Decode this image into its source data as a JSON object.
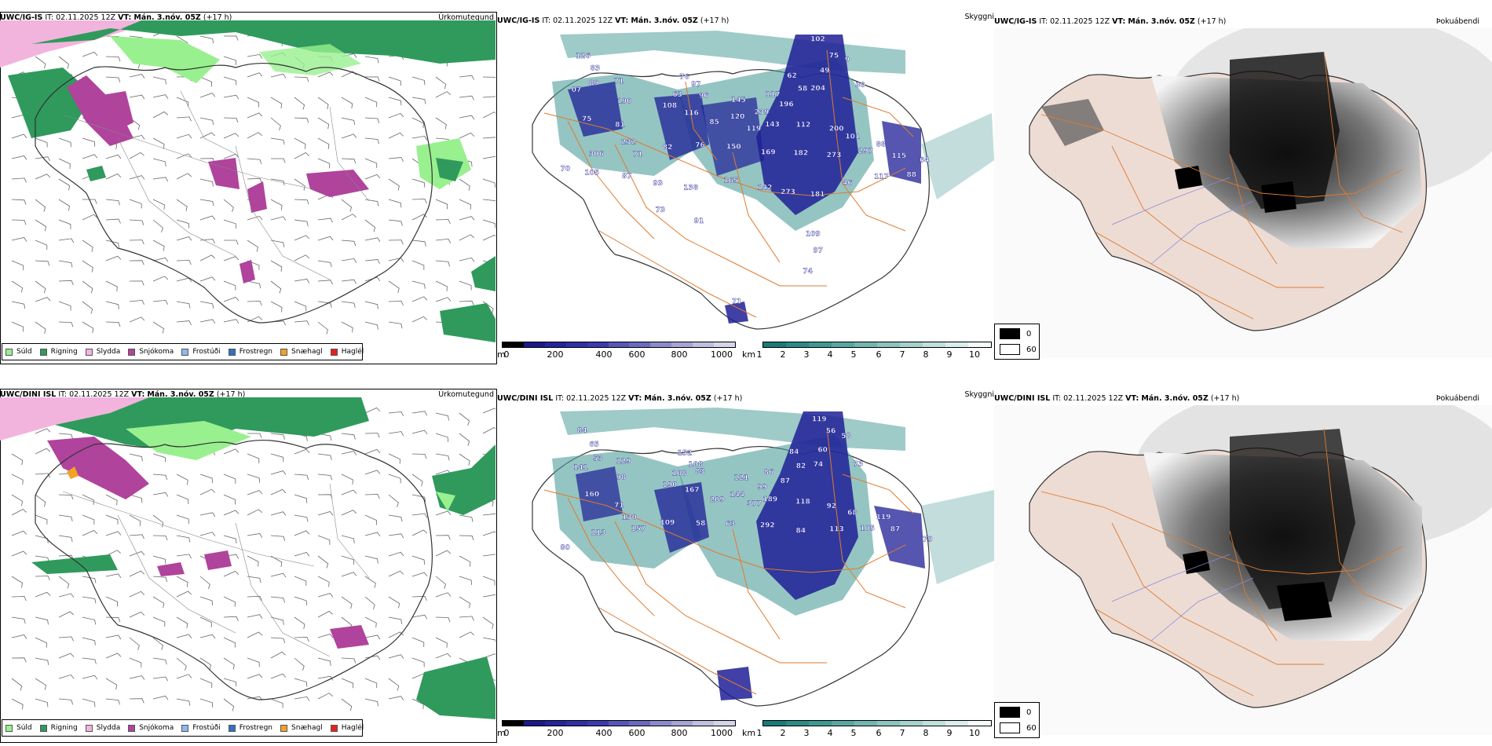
{
  "rows": [
    {
      "model": "UWC/IG-IS",
      "it_label": "IT:",
      "it_value": "02.11.2025 12Z",
      "vt_label": "VT:",
      "vt_value": "Mán. 3.nóv. 05Z",
      "lead": "(+17 h)",
      "panels": [
        {
          "label": "Úrkomutegund"
        },
        {
          "label": "Skyggni"
        },
        {
          "label": "Þokuábendi"
        }
      ],
      "vis_values": [
        "102",
        "75",
        "49",
        "9",
        "62",
        "58",
        "204",
        "30",
        "76",
        "97",
        "63",
        "96",
        "117",
        "196",
        "239",
        "126",
        "83",
        "89",
        "71",
        "07",
        "190",
        "108",
        "116",
        "145",
        "85",
        "120",
        "119",
        "143",
        "112",
        "200",
        "101",
        "88",
        "75",
        "81",
        "232",
        "306",
        "71",
        "82",
        "76",
        "150",
        "169",
        "182",
        "273",
        "297",
        "115",
        "64",
        "70",
        "105",
        "87",
        "93",
        "138",
        "165",
        "142",
        "273",
        "181",
        "46",
        "117",
        "88",
        "73",
        "91",
        "109",
        "97",
        "74",
        "71"
      ]
    },
    {
      "model": "UWC/DINI ISL",
      "it_label": "IT:",
      "it_value": "02.11.2025 12Z",
      "vt_label": "VT:",
      "vt_value": "Mán. 3.nóv. 05Z",
      "lead": "(+17 h)",
      "panels": [
        {
          "label": "Úrkomutegund"
        },
        {
          "label": "Skyggni"
        },
        {
          "label": "Þokuábendi"
        }
      ],
      "vis_values": [
        "119",
        "56",
        "60",
        "58",
        "84",
        "82",
        "74",
        "73",
        "152",
        "108",
        "108",
        "83",
        "86",
        "87",
        "99",
        "84",
        "65",
        "53",
        "129",
        "141",
        "98",
        "190",
        "167",
        "121",
        "209",
        "144",
        "377",
        "189",
        "118",
        "92",
        "68",
        "119",
        "160",
        "71",
        "130",
        "113",
        "157",
        "109",
        "58",
        "63",
        "292",
        "84",
        "113",
        "105",
        "87",
        "79",
        "80"
      ]
    }
  ],
  "precip_legend": [
    {
      "label": "Súld",
      "color": "#99f08f"
    },
    {
      "label": "Rigning",
      "color": "#2f9a5c"
    },
    {
      "label": "Slydda",
      "color": "#f2b4dd"
    },
    {
      "label": "Snjókoma",
      "color": "#b0439c"
    },
    {
      "label": "Frostúði",
      "color": "#8fb8ee"
    },
    {
      "label": "Frostregn",
      "color": "#3173c2"
    },
    {
      "label": "Snæhagl",
      "color": "#f2a227"
    },
    {
      "label": "Haglél",
      "color": "#e8201f"
    }
  ],
  "ceiling_bar": {
    "unit": "m",
    "ticks": [
      "0",
      "200",
      "400",
      "600",
      "800",
      "1000"
    ],
    "colors": [
      "#000000",
      "#1a1a8a",
      "#24249e",
      "#3030a8",
      "#3b3bb0",
      "#5656b8",
      "#6a6ac2",
      "#8a8acc",
      "#a4a4d6",
      "#bfbfe0",
      "#d4d4ea"
    ]
  },
  "vis_bar": {
    "unit": "km",
    "ticks": [
      "1",
      "2",
      "3",
      "4",
      "5",
      "6",
      "7",
      "8",
      "9",
      "10"
    ],
    "colors": [
      "#1a7a78",
      "#2c8a86",
      "#3f9893",
      "#58a7a2",
      "#72b6b1",
      "#8cc4c0",
      "#a6d2ce",
      "#c0e0dd",
      "#daeeec",
      "#f4fbfa"
    ]
  },
  "fog_legend": [
    {
      "label": "0",
      "color": "#000000"
    },
    {
      "label": "60",
      "color": "#ffffff"
    }
  ],
  "colors": {
    "road": "#e07a2e",
    "coast": "#333333",
    "ceiling_dark": "#1e1e96",
    "vis_teal": "#4f9e99"
  }
}
